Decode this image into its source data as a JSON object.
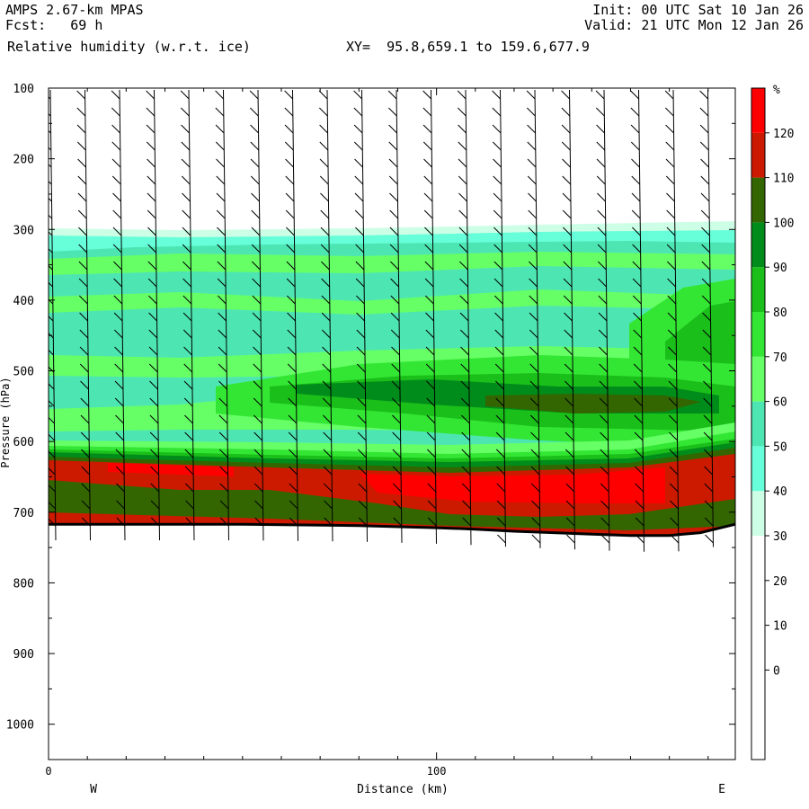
{
  "header": {
    "model": "AMPS 2.67-km MPAS",
    "fcst": "Fcst:   69 h",
    "field": "Relative humidity (w.r.t. ice)",
    "xy": "XY=  95.8,659.1 to 159.6,677.9",
    "init": "Init: 00 UTC Sat 10 Jan 26",
    "valid": "Valid: 21 UTC Mon 12 Jan 26"
  },
  "chart_data": {
    "type": "heatmap",
    "title": "Relative humidity (w.r.t. ice)",
    "xlabel": "Distance (km)",
    "ylabel": "Pressure (hPa)",
    "x_ticks": [
      "0",
      "100"
    ],
    "x_ends": {
      "left": "W",
      "right": "E"
    },
    "x_range_km": [
      0,
      177
    ],
    "y_ticks": [
      100,
      200,
      300,
      400,
      500,
      600,
      700,
      800,
      900,
      1000
    ],
    "y_range_hPa": [
      100,
      1050
    ],
    "colorbar": {
      "unit": "%",
      "levels": [
        0,
        10,
        20,
        30,
        40,
        50,
        60,
        70,
        80,
        90,
        100,
        110,
        120
      ],
      "bands": [
        {
          "range": [
            -10,
            30
          ],
          "color": "#ffffff"
        },
        {
          "range": [
            30,
            40
          ],
          "color": "#ccffe6"
        },
        {
          "range": [
            40,
            50
          ],
          "color": "#66ffd9"
        },
        {
          "range": [
            50,
            60
          ],
          "color": "#4de6b3"
        },
        {
          "range": [
            60,
            70
          ],
          "color": "#66ff66"
        },
        {
          "range": [
            70,
            80
          ],
          "color": "#33e633"
        },
        {
          "range": [
            80,
            90
          ],
          "color": "#1abf1a"
        },
        {
          "range": [
            90,
            100
          ],
          "color": "#008c1a"
        },
        {
          "range": [
            100,
            110
          ],
          "color": "#336600"
        },
        {
          "range": [
            110,
            120
          ],
          "color": "#cc1a00"
        },
        {
          "range": [
            120,
            130
          ],
          "color": "#ff0000"
        }
      ]
    },
    "terrain_pressure_hPa": [
      [
        0,
        717
      ],
      [
        50,
        717
      ],
      [
        80,
        719
      ],
      [
        100,
        722
      ],
      [
        110,
        724
      ],
      [
        120,
        727
      ],
      [
        140,
        731
      ],
      [
        150,
        733
      ],
      [
        160,
        733
      ],
      [
        168,
        729
      ],
      [
        177,
        717
      ]
    ],
    "layers": [
      {
        "name": "moist-top",
        "top_hPa": 298,
        "bottom_hPa": 610,
        "rh_range": [
          30,
          70
        ]
      },
      {
        "name": "mid-level-moist-band",
        "top_hPa": 515,
        "bottom_hPa": 575,
        "rh_range": [
          80,
          100
        ]
      },
      {
        "name": "saturated-layer",
        "top_hPa": 610,
        "bottom_hPa": 717,
        "rh_range": [
          100,
          130
        ]
      }
    ]
  }
}
